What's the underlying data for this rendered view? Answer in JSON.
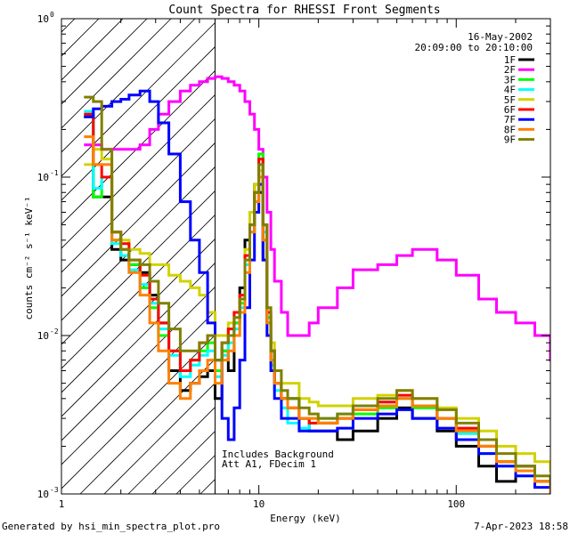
{
  "chart_data": {
    "type": "line",
    "title": "Count Spectra for RHESSI Front Segments",
    "xlabel": "Energy (keV)",
    "ylabel": "counts cm⁻² s⁻¹ keV⁻¹",
    "xscale": "log",
    "yscale": "log",
    "xlim": [
      1,
      300
    ],
    "ylim": [
      0.001,
      1
    ],
    "x_ticks": [
      {
        "v": 10,
        "label": "10"
      },
      {
        "v": 100,
        "label": "100"
      }
    ],
    "x_tick_under_1": "1",
    "y_ticks": [
      {
        "v": 1,
        "label": "10",
        "exp": "0"
      },
      {
        "v": 0.1,
        "label": "10",
        "exp": "-1"
      },
      {
        "v": 0.01,
        "label": "10",
        "exp": "-2"
      },
      {
        "v": 0.001,
        "label": "10",
        "exp": "-3"
      }
    ],
    "hatched_region": {
      "x_from": 1,
      "x_to": 6
    },
    "annotations": {
      "date": "16-May-2002",
      "time_range": "20:09:00 to 20:10:00",
      "note_1": "Includes Background",
      "note_2": "Att A1, FDecim 1"
    },
    "footer_left": "Generated by hsi_min_spectra_plot.pro",
    "footer_right": "7-Apr-2023 18:58",
    "series": [
      {
        "name": "1F",
        "color": "#000000",
        "x": [
          1.3,
          1.45,
          1.6,
          1.8,
          2.0,
          2.2,
          2.5,
          2.8,
          3.1,
          3.5,
          4.0,
          4.5,
          5.0,
          5.5,
          6.0,
          6.5,
          7.0,
          7.5,
          8.0,
          8.5,
          9.0,
          9.5,
          10,
          10.5,
          11,
          11.5,
          12,
          13,
          14,
          16,
          18,
          20,
          25,
          30,
          40,
          50,
          60,
          80,
          100,
          130,
          160,
          200,
          250,
          300
        ],
        "values": [
          0.24,
          0.075,
          0.075,
          0.035,
          0.03,
          0.028,
          0.025,
          0.018,
          0.012,
          0.006,
          0.0045,
          0.005,
          0.0055,
          0.006,
          0.004,
          0.008,
          0.006,
          0.012,
          0.02,
          0.04,
          0.06,
          0.09,
          0.08,
          0.03,
          0.012,
          0.008,
          0.005,
          0.004,
          0.004,
          0.003,
          0.0025,
          0.0025,
          0.0022,
          0.0025,
          0.003,
          0.0035,
          0.003,
          0.0025,
          0.002,
          0.0015,
          0.0012,
          0.0015,
          0.0012,
          0.001
        ]
      },
      {
        "name": "2F",
        "color": "#ff00ff",
        "x": [
          1.3,
          1.45,
          1.6,
          1.8,
          2.0,
          2.2,
          2.5,
          2.8,
          3.1,
          3.5,
          4.0,
          4.5,
          5.0,
          5.5,
          6.0,
          6.5,
          7.0,
          7.5,
          8.0,
          8.5,
          9.0,
          9.5,
          10,
          10.5,
          11,
          11.5,
          12,
          13,
          14,
          16,
          18,
          20,
          25,
          30,
          40,
          50,
          60,
          80,
          100,
          130,
          160,
          200,
          250,
          300
        ],
        "values": [
          0.16,
          0.16,
          0.15,
          0.15,
          0.15,
          0.15,
          0.16,
          0.2,
          0.25,
          0.3,
          0.35,
          0.38,
          0.4,
          0.42,
          0.43,
          0.42,
          0.4,
          0.38,
          0.35,
          0.3,
          0.25,
          0.2,
          0.15,
          0.1,
          0.06,
          0.035,
          0.022,
          0.014,
          0.01,
          0.01,
          0.012,
          0.015,
          0.02,
          0.026,
          0.028,
          0.032,
          0.035,
          0.03,
          0.024,
          0.017,
          0.014,
          0.012,
          0.01,
          0.007
        ]
      },
      {
        "name": "3F",
        "color": "#00ff00",
        "x": [
          1.3,
          1.45,
          1.6,
          1.8,
          2.0,
          2.2,
          2.5,
          2.8,
          3.1,
          3.5,
          4.0,
          4.5,
          5.0,
          5.5,
          6.0,
          6.5,
          7.0,
          7.5,
          8.0,
          8.5,
          9.0,
          9.5,
          10,
          10.5,
          11,
          11.5,
          12,
          13,
          14,
          16,
          18,
          20,
          25,
          30,
          40,
          50,
          60,
          80,
          100,
          130,
          160,
          200,
          250,
          300
        ],
        "values": [
          0.24,
          0.075,
          0.1,
          0.04,
          0.035,
          0.028,
          0.02,
          0.015,
          0.01,
          0.008,
          0.006,
          0.007,
          0.008,
          0.009,
          0.006,
          0.008,
          0.01,
          0.012,
          0.016,
          0.03,
          0.05,
          0.08,
          0.14,
          0.05,
          0.013,
          0.007,
          0.005,
          0.004,
          0.004,
          0.003,
          0.003,
          0.0028,
          0.003,
          0.0032,
          0.0035,
          0.004,
          0.0035,
          0.003,
          0.0025,
          0.002,
          0.0016,
          0.0014,
          0.0012,
          0.001
        ]
      },
      {
        "name": "4F",
        "color": "#00ffff",
        "x": [
          1.3,
          1.45,
          1.6,
          1.8,
          2.0,
          2.2,
          2.5,
          2.8,
          3.1,
          3.5,
          4.0,
          4.5,
          5.0,
          5.5,
          6.0,
          6.5,
          7.0,
          7.5,
          8.0,
          8.5,
          9.0,
          9.5,
          10,
          10.5,
          11,
          11.5,
          12,
          13,
          14,
          16,
          18,
          20,
          25,
          30,
          40,
          50,
          60,
          80,
          100,
          130,
          160,
          200,
          250,
          300
        ],
        "values": [
          0.26,
          0.085,
          0.1,
          0.038,
          0.032,
          0.026,
          0.021,
          0.016,
          0.011,
          0.0075,
          0.0055,
          0.0065,
          0.0075,
          0.008,
          0.0055,
          0.0075,
          0.009,
          0.011,
          0.015,
          0.028,
          0.045,
          0.07,
          0.12,
          0.045,
          0.012,
          0.0065,
          0.0045,
          0.0035,
          0.0028,
          0.0026,
          0.0028,
          0.003,
          0.0032,
          0.0036,
          0.0038,
          0.004,
          0.0036,
          0.003,
          0.0024,
          0.0018,
          0.0015,
          0.0013,
          0.0012,
          0.001
        ]
      },
      {
        "name": "5F",
        "color": "#d2d200",
        "x": [
          1.3,
          1.45,
          1.6,
          1.8,
          2.0,
          2.2,
          2.5,
          2.8,
          3.1,
          3.5,
          4.0,
          4.5,
          5.0,
          5.5,
          6.0,
          6.5,
          7.0,
          7.5,
          8.0,
          8.5,
          9.0,
          9.5,
          10,
          10.5,
          11,
          11.5,
          12,
          13,
          14,
          16,
          18,
          20,
          25,
          30,
          40,
          50,
          60,
          80,
          100,
          130,
          160,
          200,
          250,
          300
        ],
        "values": [
          0.12,
          0.15,
          0.13,
          0.045,
          0.04,
          0.035,
          0.033,
          0.028,
          0.028,
          0.024,
          0.022,
          0.02,
          0.018,
          0.014,
          0.01,
          0.01,
          0.012,
          0.014,
          0.018,
          0.035,
          0.06,
          0.09,
          0.11,
          0.05,
          0.015,
          0.009,
          0.006,
          0.005,
          0.005,
          0.004,
          0.0038,
          0.0036,
          0.0036,
          0.004,
          0.0042,
          0.0045,
          0.004,
          0.0035,
          0.003,
          0.0025,
          0.002,
          0.0018,
          0.0016,
          0.0014
        ]
      },
      {
        "name": "6F",
        "color": "#ff0000",
        "x": [
          1.3,
          1.45,
          1.6,
          1.8,
          2.0,
          2.2,
          2.5,
          2.8,
          3.1,
          3.5,
          4.0,
          4.5,
          5.0,
          5.5,
          6.0,
          6.5,
          7.0,
          7.5,
          8.0,
          8.5,
          9.0,
          9.5,
          10,
          10.5,
          11,
          11.5,
          12,
          13,
          14,
          16,
          18,
          20,
          25,
          30,
          40,
          50,
          60,
          80,
          100,
          130,
          160,
          200,
          250,
          300
        ],
        "values": [
          0.25,
          0.12,
          0.1,
          0.045,
          0.038,
          0.03,
          0.024,
          0.017,
          0.012,
          0.008,
          0.006,
          0.007,
          0.009,
          0.01,
          0.007,
          0.009,
          0.011,
          0.014,
          0.018,
          0.032,
          0.05,
          0.08,
          0.13,
          0.05,
          0.014,
          0.008,
          0.005,
          0.004,
          0.0035,
          0.003,
          0.0028,
          0.0028,
          0.003,
          0.0034,
          0.0038,
          0.0042,
          0.0036,
          0.003,
          0.0026,
          0.002,
          0.0016,
          0.0014,
          0.0012,
          0.001
        ]
      },
      {
        "name": "7F",
        "color": "#0000ff",
        "x": [
          1.3,
          1.45,
          1.6,
          1.8,
          2.0,
          2.2,
          2.5,
          2.8,
          3.1,
          3.5,
          4.0,
          4.5,
          5.0,
          5.5,
          6.0,
          6.5,
          7.0,
          7.5,
          8.0,
          8.5,
          9.0,
          9.5,
          10,
          10.5,
          11,
          11.5,
          12,
          13,
          14,
          16,
          18,
          20,
          25,
          30,
          40,
          50,
          60,
          80,
          100,
          130,
          160,
          200,
          250,
          300
        ],
        "values": [
          0.24,
          0.27,
          0.28,
          0.3,
          0.31,
          0.33,
          0.35,
          0.3,
          0.22,
          0.14,
          0.07,
          0.04,
          0.025,
          0.012,
          0.007,
          0.003,
          0.0022,
          0.0035,
          0.007,
          0.015,
          0.03,
          0.06,
          0.09,
          0.03,
          0.01,
          0.006,
          0.004,
          0.003,
          0.003,
          0.0025,
          0.0025,
          0.0025,
          0.0026,
          0.003,
          0.0032,
          0.0034,
          0.003,
          0.0026,
          0.0022,
          0.0018,
          0.0015,
          0.0013,
          0.0011,
          0.001
        ]
      },
      {
        "name": "8F",
        "color": "#ff8000",
        "x": [
          1.3,
          1.45,
          1.6,
          1.8,
          2.0,
          2.2,
          2.5,
          2.8,
          3.1,
          3.5,
          4.0,
          4.5,
          5.0,
          5.5,
          6.0,
          6.5,
          7.0,
          7.5,
          8.0,
          8.5,
          9.0,
          9.5,
          10,
          10.5,
          11,
          11.5,
          12,
          13,
          14,
          16,
          18,
          20,
          25,
          30,
          40,
          50,
          60,
          80,
          100,
          130,
          160,
          200,
          250,
          300
        ],
        "values": [
          0.18,
          0.12,
          0.12,
          0.04,
          0.035,
          0.025,
          0.018,
          0.012,
          0.008,
          0.005,
          0.004,
          0.005,
          0.006,
          0.007,
          0.005,
          0.007,
          0.008,
          0.01,
          0.014,
          0.025,
          0.045,
          0.07,
          0.1,
          0.04,
          0.012,
          0.007,
          0.005,
          0.004,
          0.0035,
          0.003,
          0.003,
          0.0028,
          0.003,
          0.0034,
          0.0036,
          0.004,
          0.0036,
          0.003,
          0.0025,
          0.002,
          0.0016,
          0.0014,
          0.0012,
          0.001
        ]
      },
      {
        "name": "9F",
        "color": "#808000",
        "x": [
          1.3,
          1.45,
          1.6,
          1.8,
          2.0,
          2.2,
          2.5,
          2.8,
          3.1,
          3.5,
          4.0,
          4.5,
          5.0,
          5.5,
          6.0,
          6.5,
          7.0,
          7.5,
          8.0,
          8.5,
          9.0,
          9.5,
          10,
          10.5,
          11,
          11.5,
          12,
          13,
          14,
          16,
          18,
          20,
          25,
          30,
          40,
          50,
          60,
          80,
          100,
          130,
          160,
          200,
          250,
          300
        ],
        "values": [
          0.32,
          0.3,
          0.15,
          0.045,
          0.035,
          0.03,
          0.028,
          0.022,
          0.016,
          0.011,
          0.008,
          0.008,
          0.009,
          0.01,
          0.007,
          0.009,
          0.01,
          0.013,
          0.017,
          0.03,
          0.05,
          0.08,
          0.12,
          0.05,
          0.015,
          0.008,
          0.006,
          0.0045,
          0.004,
          0.0035,
          0.0032,
          0.003,
          0.0032,
          0.0036,
          0.004,
          0.0045,
          0.004,
          0.0034,
          0.0028,
          0.0022,
          0.0018,
          0.0015,
          0.0013,
          0.0011
        ]
      }
    ]
  }
}
